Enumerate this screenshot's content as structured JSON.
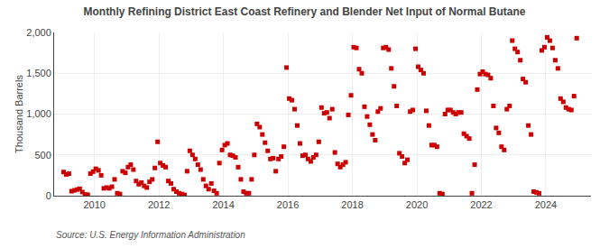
{
  "chart_data": {
    "type": "scatter",
    "title": "Monthly Refining District East Coast Refinery and Blender Net Input of Normal Butane",
    "ylabel": "Thousand Barrels",
    "annotations": [
      "Source: U.S. Energy Information Administration"
    ],
    "color": "#cc0000",
    "marker": "square",
    "grid": true,
    "xlim": [
      2008.75,
      2025.4
    ],
    "xticks": [
      2010,
      2012,
      2014,
      2016,
      2018,
      2020,
      2022,
      2024
    ],
    "ylim": [
      0,
      2000
    ],
    "yticks": [
      0,
      500,
      {
        "value": 1000,
        "label": "1,000"
      },
      {
        "value": 1500,
        "label": "1,500"
      },
      {
        "value": 2000,
        "label": "2,000"
      }
    ],
    "x": [
      2009.041667,
      2009.125,
      2009.208333,
      2009.291667,
      2009.375,
      2009.458333,
      2009.541667,
      2009.625,
      2009.708333,
      2009.791667,
      2009.875,
      2009.958333,
      2010.041667,
      2010.125,
      2010.208333,
      2010.291667,
      2010.375,
      2010.458333,
      2010.541667,
      2010.625,
      2010.708333,
      2010.791667,
      2010.875,
      2010.958333,
      2011.041667,
      2011.125,
      2011.208333,
      2011.291667,
      2011.375,
      2011.458333,
      2011.541667,
      2011.625,
      2011.708333,
      2011.791667,
      2011.875,
      2011.958333,
      2012.041667,
      2012.125,
      2012.208333,
      2012.291667,
      2012.375,
      2012.458333,
      2012.541667,
      2012.625,
      2012.708333,
      2012.791667,
      2012.875,
      2012.958333,
      2013.041667,
      2013.125,
      2013.208333,
      2013.291667,
      2013.375,
      2013.458333,
      2013.541667,
      2013.625,
      2013.708333,
      2013.791667,
      2013.875,
      2013.958333,
      2014.041667,
      2014.125,
      2014.208333,
      2014.291667,
      2014.375,
      2014.458333,
      2014.541667,
      2014.625,
      2014.708333,
      2014.791667,
      2014.875,
      2014.958333,
      2015.041667,
      2015.125,
      2015.208333,
      2015.291667,
      2015.375,
      2015.458333,
      2015.541667,
      2015.625,
      2015.708333,
      2015.791667,
      2015.875,
      2015.958333,
      2016.041667,
      2016.125,
      2016.208333,
      2016.291667,
      2016.375,
      2016.458333,
      2016.541667,
      2016.625,
      2016.708333,
      2016.791667,
      2016.875,
      2016.958333,
      2017.041667,
      2017.125,
      2017.208333,
      2017.291667,
      2017.375,
      2017.458333,
      2017.541667,
      2017.625,
      2017.708333,
      2017.791667,
      2017.875,
      2017.958333,
      2018.041667,
      2018.125,
      2018.208333,
      2018.291667,
      2018.375,
      2018.458333,
      2018.541667,
      2018.625,
      2018.708333,
      2018.791667,
      2018.875,
      2018.958333,
      2019.041667,
      2019.125,
      2019.208333,
      2019.291667,
      2019.375,
      2019.458333,
      2019.541667,
      2019.625,
      2019.708333,
      2019.791667,
      2019.875,
      2019.958333,
      2020.041667,
      2020.125,
      2020.208333,
      2020.291667,
      2020.375,
      2020.458333,
      2020.541667,
      2020.625,
      2020.708333,
      2020.791667,
      2020.875,
      2020.958333,
      2021.041667,
      2021.125,
      2021.208333,
      2021.291667,
      2021.375,
      2021.458333,
      2021.541667,
      2021.625,
      2021.708333,
      2021.791667,
      2021.875,
      2021.958333,
      2022.041667,
      2022.125,
      2022.208333,
      2022.291667,
      2022.375,
      2022.458333,
      2022.541667,
      2022.625,
      2022.708333,
      2022.791667,
      2022.875,
      2022.958333,
      2023.041667,
      2023.125,
      2023.208333,
      2023.291667,
      2023.375,
      2023.458333,
      2023.541667,
      2023.625,
      2023.708333,
      2023.791667,
      2023.875,
      2023.958333,
      2024.041667,
      2024.125,
      2024.208333,
      2024.291667,
      2024.375,
      2024.458333,
      2024.541667,
      2024.625,
      2024.708333,
      2024.791667,
      2024.875,
      2024.958333
    ],
    "values": [
      290,
      260,
      270,
      55,
      65,
      75,
      85,
      45,
      15,
      12,
      270,
      295,
      330,
      310,
      250,
      90,
      100,
      90,
      110,
      200,
      30,
      20,
      300,
      280,
      350,
      380,
      320,
      180,
      140,
      160,
      120,
      100,
      170,
      200,
      340,
      660,
      400,
      370,
      350,
      180,
      150,
      80,
      50,
      30,
      20,
      10,
      300,
      550,
      500,
      450,
      380,
      320,
      200,
      120,
      80,
      150,
      60,
      30,
      400,
      560,
      620,
      640,
      500,
      490,
      470,
      350,
      200,
      50,
      30,
      30,
      200,
      500,
      880,
      840,
      750,
      650,
      550,
      450,
      460,
      300,
      450,
      480,
      600,
      1570,
      1190,
      1170,
      1060,
      860,
      640,
      490,
      500,
      450,
      420,
      470,
      500,
      660,
      1080,
      1010,
      1020,
      950,
      1060,
      530,
      390,
      350,
      380,
      410,
      990,
      1230,
      1820,
      1810,
      1550,
      1500,
      1090,
      970,
      870,
      750,
      680,
      1030,
      1070,
      1810,
      1820,
      1790,
      1560,
      1340,
      1100,
      520,
      480,
      400,
      440,
      1030,
      1050,
      1800,
      1580,
      1540,
      1500,
      1040,
      860,
      620,
      620,
      600,
      30,
      20,
      1000,
      1050,
      1050,
      1020,
      1000,
      1020,
      1020,
      760,
      730,
      700,
      30,
      380,
      1300,
      1490,
      1520,
      1490,
      1480,
      1440,
      1100,
      830,
      770,
      600,
      560,
      1060,
      1100,
      1900,
      1800,
      1760,
      1660,
      1430,
      1390,
      860,
      750,
      50,
      40,
      30,
      1780,
      1820,
      1940,
      1900,
      1810,
      1660,
      1560,
      1190,
      1150,
      1080,
      1060,
      1050,
      1220,
      1930
    ]
  }
}
